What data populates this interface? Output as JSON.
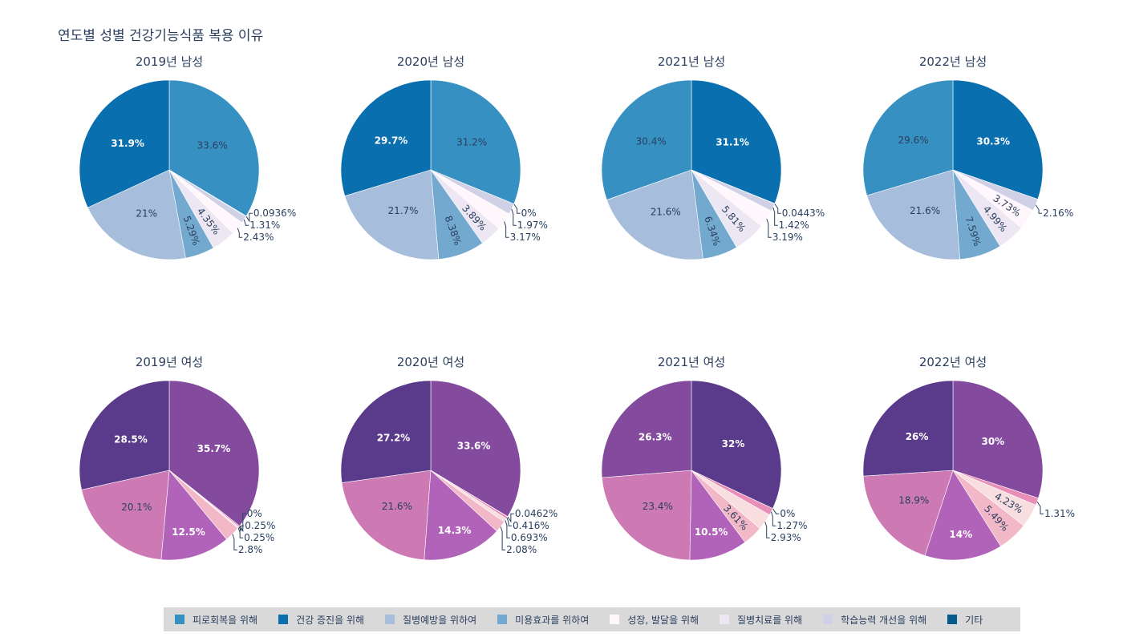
{
  "title": "연도별 성별 건강기능식품 복용 이유",
  "legend": [
    {
      "label": "피로회복을 위해",
      "color": "#3790c2"
    },
    {
      "label": "건강 증진을 위해",
      "color": "#0a6fae"
    },
    {
      "label": "질병예방을 위하여",
      "color": "#a6bddb"
    },
    {
      "label": "미용효과를 위하여",
      "color": "#74a9cf"
    },
    {
      "label": "성장, 발달을 위해",
      "color": "#fff7fb"
    },
    {
      "label": "질병치료를 위해",
      "color": "#ece7f2"
    },
    {
      "label": "학습능력 개선을 위해",
      "color": "#d0d1e6"
    },
    {
      "label": "기타",
      "color": "#045a8d"
    }
  ],
  "male_colors": [
    "#3790c2",
    "#0a6fae",
    "#a6bddb",
    "#74a9cf",
    "#fff7fb",
    "#ece7f2",
    "#d0d1e6",
    "#045a8d"
  ],
  "female_colors": [
    "#834a9e",
    "#5a3a8a",
    "#cc79b4",
    "#b063b8",
    "#f2b8c8",
    "#f8dede",
    "#e98fb7",
    "#ffffff"
  ],
  "chart_data": [
    {
      "type": "pie",
      "title": "2019년 남성",
      "slices": [
        {
          "label": "피로회복을 위해",
          "value": 33.6,
          "text": "33.6%"
        },
        {
          "label": "기타",
          "value": 0.0936,
          "text": "0.0936%"
        },
        {
          "label": "학습능력 개선을 위해",
          "value": 1.31,
          "text": "1.31%"
        },
        {
          "label": "성장, 발달을 위해",
          "value": 2.43,
          "text": "2.43%"
        },
        {
          "label": "질병치료를 위해",
          "value": 4.35,
          "text": "4.35%"
        },
        {
          "label": "미용효과를 위하여",
          "value": 5.29,
          "text": "5.29%"
        },
        {
          "label": "질병예방을 위하여",
          "value": 21,
          "text": "21%"
        },
        {
          "label": "건강 증진을 위해",
          "value": 31.9,
          "text": "31.9%"
        }
      ]
    },
    {
      "type": "pie",
      "title": "2020년 남성",
      "slices": [
        {
          "label": "피로회복을 위해",
          "value": 31.2,
          "text": "31.2%"
        },
        {
          "label": "기타",
          "value": 0,
          "text": "0%"
        },
        {
          "label": "학습능력 개선을 위해",
          "value": 1.97,
          "text": "1.97%"
        },
        {
          "label": "성장, 발달을 위해",
          "value": 3.17,
          "text": "3.17%"
        },
        {
          "label": "질병치료를 위해",
          "value": 3.89,
          "text": "3.89%"
        },
        {
          "label": "미용효과를 위하여",
          "value": 8.38,
          "text": "8.38%"
        },
        {
          "label": "질병예방을 위하여",
          "value": 21.7,
          "text": "21.7%"
        },
        {
          "label": "건강 증진을 위해",
          "value": 29.7,
          "text": "29.7%"
        }
      ]
    },
    {
      "type": "pie",
      "title": "2021년 남성",
      "slices": [
        {
          "label": "건강 증진을 위해",
          "value": 31.1,
          "text": "31.1%"
        },
        {
          "label": "기타",
          "value": 0.0443,
          "text": "0.0443%"
        },
        {
          "label": "학습능력 개선을 위해",
          "value": 1.42,
          "text": "1.42%"
        },
        {
          "label": "성장, 발달을 위해",
          "value": 3.19,
          "text": "3.19%"
        },
        {
          "label": "질병치료를 위해",
          "value": 5.81,
          "text": "5.81%"
        },
        {
          "label": "미용효과를 위하여",
          "value": 6.34,
          "text": "6.34%"
        },
        {
          "label": "질병예방을 위하여",
          "value": 21.6,
          "text": "21.6%"
        },
        {
          "label": "피로회복을 위해",
          "value": 30.4,
          "text": "30.4%"
        }
      ]
    },
    {
      "type": "pie",
      "title": "2022년 남성",
      "slices": [
        {
          "label": "건강 증진을 위해",
          "value": 30.3,
          "text": "30.3%"
        },
        {
          "label": "학습능력 개선을 위해",
          "value": 2.16,
          "text": "2.16%"
        },
        {
          "label": "성장, 발달을 위해",
          "value": 3.73,
          "text": "3.73%"
        },
        {
          "label": "질병치료를 위해",
          "value": 4.99,
          "text": "4.99%"
        },
        {
          "label": "미용효과를 위하여",
          "value": 7.59,
          "text": "7.59%"
        },
        {
          "label": "질병예방을 위하여",
          "value": 21.6,
          "text": "21.6%"
        },
        {
          "label": "피로회복을 위해",
          "value": 29.6,
          "text": "29.6%"
        }
      ]
    },
    {
      "type": "pie",
      "title": "2019년 여성",
      "slices": [
        {
          "label": "s0",
          "value": 35.7,
          "text": "35.7%"
        },
        {
          "label": "s7",
          "value": 0,
          "text": "0%"
        },
        {
          "label": "s6",
          "value": 0.25,
          "text": "0.25%"
        },
        {
          "label": "s5",
          "value": 0.25,
          "text": "0.25%"
        },
        {
          "label": "s4",
          "value": 2.8,
          "text": "2.8%"
        },
        {
          "label": "s3",
          "value": 12.5,
          "text": "12.5%"
        },
        {
          "label": "s2",
          "value": 20.1,
          "text": "20.1%"
        },
        {
          "label": "s1",
          "value": 28.5,
          "text": "28.5%"
        }
      ]
    },
    {
      "type": "pie",
      "title": "2020년 여성",
      "slices": [
        {
          "label": "s0",
          "value": 33.6,
          "text": "33.6%"
        },
        {
          "label": "s7",
          "value": 0.0462,
          "text": "0.0462%"
        },
        {
          "label": "s6",
          "value": 0.416,
          "text": "0.416%"
        },
        {
          "label": "s5",
          "value": 0.693,
          "text": "0.693%"
        },
        {
          "label": "s4",
          "value": 2.08,
          "text": "2.08%"
        },
        {
          "label": "s3",
          "value": 14.3,
          "text": "14.3%"
        },
        {
          "label": "s2",
          "value": 21.6,
          "text": "21.6%"
        },
        {
          "label": "s1",
          "value": 27.2,
          "text": "27.2%"
        }
      ]
    },
    {
      "type": "pie",
      "title": "2021년 여성",
      "slices": [
        {
          "label": "s1",
          "value": 32,
          "text": "32%"
        },
        {
          "label": "s7",
          "value": 0,
          "text": "0%"
        },
        {
          "label": "s6",
          "value": 1.27,
          "text": "1.27%"
        },
        {
          "label": "s5",
          "value": 2.93,
          "text": "2.93%"
        },
        {
          "label": "s4",
          "value": 3.61,
          "text": "3.61%"
        },
        {
          "label": "s3",
          "value": 10.5,
          "text": "10.5%"
        },
        {
          "label": "s2",
          "value": 23.4,
          "text": "23.4%"
        },
        {
          "label": "s0",
          "value": 26.3,
          "text": "26.3%"
        }
      ]
    },
    {
      "type": "pie",
      "title": "2022년 여성",
      "slices": [
        {
          "label": "s0",
          "value": 30,
          "text": "30%"
        },
        {
          "label": "s6",
          "value": 1.31,
          "text": "1.31%"
        },
        {
          "label": "s5",
          "value": 4.23,
          "text": "4.23%"
        },
        {
          "label": "s4",
          "value": 5.49,
          "text": "5.49%"
        },
        {
          "label": "s3",
          "value": 14,
          "text": "14%"
        },
        {
          "label": "s2",
          "value": 18.9,
          "text": "18.9%"
        },
        {
          "label": "s1",
          "value": 26,
          "text": "26%"
        }
      ]
    }
  ]
}
